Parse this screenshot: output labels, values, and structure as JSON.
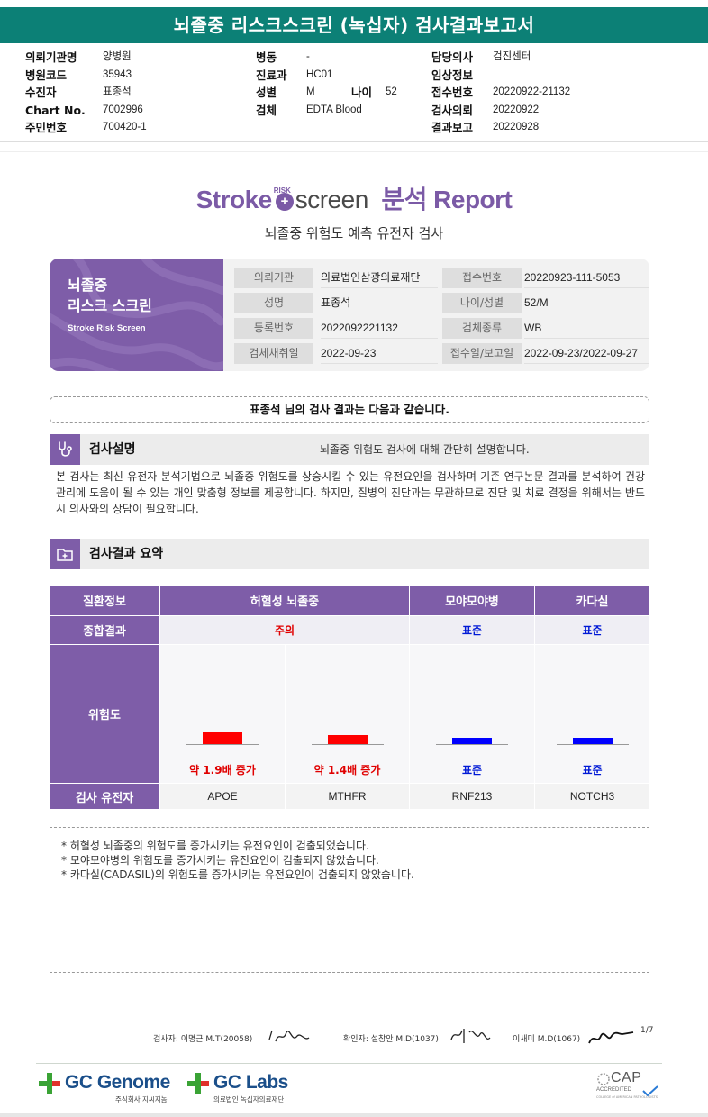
{
  "report_header": {
    "title": "뇌졸중 리스크스크린 (녹십자) 검사결과보고서",
    "col1": [
      {
        "label": "의뢰기관명",
        "value": "양병원"
      },
      {
        "label": "병원코드",
        "value": "35943"
      },
      {
        "label": "수진자",
        "value": "표종석"
      },
      {
        "label": "Chart No.",
        "value": "7002996"
      },
      {
        "label": "주민번호",
        "value": "700420-1"
      }
    ],
    "col2": [
      {
        "label": "병동",
        "value": "-"
      },
      {
        "label": "진료과",
        "value": "HC01"
      },
      {
        "label": "성별",
        "value": "M"
      },
      {
        "label": "검체",
        "value": "EDTA Blood"
      }
    ],
    "age": {
      "label": "나이",
      "value": "52"
    },
    "col3": [
      {
        "label": "담당의사",
        "value": "검진센터"
      },
      {
        "label": "임상정보",
        "value": ""
      },
      {
        "label": "접수번호",
        "value": "20220922-21132"
      },
      {
        "label": "검사의뢰",
        "value": "20220922"
      },
      {
        "label": "결과보고",
        "value": "20220928"
      }
    ]
  },
  "brand": {
    "stroke": "Stroke",
    "risk": "RISK",
    "screen": "screen",
    "report": "분석 Report",
    "subtitle": "뇌졸중 위험도 예측 유전자 검사"
  },
  "card": {
    "title_line1": "뇌졸중",
    "title_line2": "리스크 스크린",
    "subtitle": "Stroke Risk Screen",
    "rows": [
      [
        {
          "k": "의뢰기관",
          "v": "의료법인삼광의료재단"
        },
        {
          "k": "접수번호",
          "v": "20220923-111-5053"
        }
      ],
      [
        {
          "k": "성명",
          "v": "표종석"
        },
        {
          "k": "나이/성별",
          "v": "52/M"
        }
      ],
      [
        {
          "k": "등록번호",
          "v": "2022092221132"
        },
        {
          "k": "검체종류",
          "v": "WB"
        }
      ],
      [
        {
          "k": "검체채취일",
          "v": "2022-09-23"
        },
        {
          "k": "접수일/보고일",
          "v": "2022-09-23/2022-09-27"
        }
      ]
    ]
  },
  "notice": "표종석 님의 검사 결과는 다음과 같습니다.",
  "section_desc": {
    "title": "검사설명",
    "desc": "뇌졸중 위험도 검사에 대해 간단히 설명합니다.",
    "paragraph": "본 검사는 최신 유전자 분석기법으로 뇌졸중 위험도를 상승시킬 수 있는 유전요인을 검사하며 기존 연구논문 결과를 분석하여 건강 관리에 도움이 될 수 있는 개인 맞춤형 정보를 제공합니다. 하지만, 질병의 진단과는 무관하므로 진단 및 치료 결정을 위해서는 반드시 의사와의 상담이 필요합니다."
  },
  "section_summary": {
    "title": "검사결과 요약"
  },
  "results": {
    "row_labels": {
      "disease": "질환정보",
      "overall": "종합결과",
      "risk": "위험도",
      "gene": "검사 유전자"
    },
    "diseases": [
      {
        "name": "허혈성 뇌졸중",
        "overall": "주의",
        "overall_color": "#e00000"
      },
      {
        "name": "모야모야병",
        "overall": "표준",
        "overall_color": "#0019d6"
      },
      {
        "name": "카다실",
        "overall": "표준",
        "overall_color": "#0019d6"
      }
    ],
    "genes": [
      {
        "gene": "APOE",
        "risk_label": "약 1.9배 증가",
        "level": 1.9,
        "color": "#ff0000",
        "label_color": "#e00000"
      },
      {
        "gene": "MTHFR",
        "risk_label": "약 1.4배 증가",
        "level": 1.4,
        "color": "#ff0000",
        "label_color": "#e00000"
      },
      {
        "gene": "RNF213",
        "risk_label": "표준",
        "level": 1.0,
        "color": "#0000ff",
        "label_color": "#0019d6"
      },
      {
        "gene": "NOTCH3",
        "risk_label": "표준",
        "level": 1.0,
        "color": "#0000ff",
        "label_color": "#0019d6"
      }
    ]
  },
  "notes": [
    "* 허혈성 뇌졸중의 위험도를 증가시키는 유전요인이 검출되었습니다.",
    "* 모야모야병의 위험도를 증가시키는 유전요인이 검출되지 않았습니다.",
    "* 카다실(CADASIL)의 위험도를 증가시키는 유전요인이 검출되지 않았습니다."
  ],
  "signatures": {
    "examiner": "검사자: 이명근 M.T(20058)",
    "confirmer": "확인자: 설창안 M.D(1037)",
    "doctor2": "이새미 M.D(1067)",
    "page": "1/7"
  },
  "footer": {
    "gc_genome": "GC Genome",
    "gc_genome_sub": "주식회사 지씨지놈",
    "gc_labs": "GC Labs",
    "gc_labs_sub": "의료법인 녹십자의료재단",
    "cap_title": "CAP",
    "cap_sub": "ACCREDITED",
    "cap_sub2": "COLLEGE of AMERICAN PATHOLOGISTS",
    "colors": {
      "brand_purple": "#7e5da8",
      "header_teal": "#0c8076",
      "gc_blue": "#1b4f8a",
      "gc_green": "#3aa335",
      "gc_red": "#e0312b"
    }
  }
}
